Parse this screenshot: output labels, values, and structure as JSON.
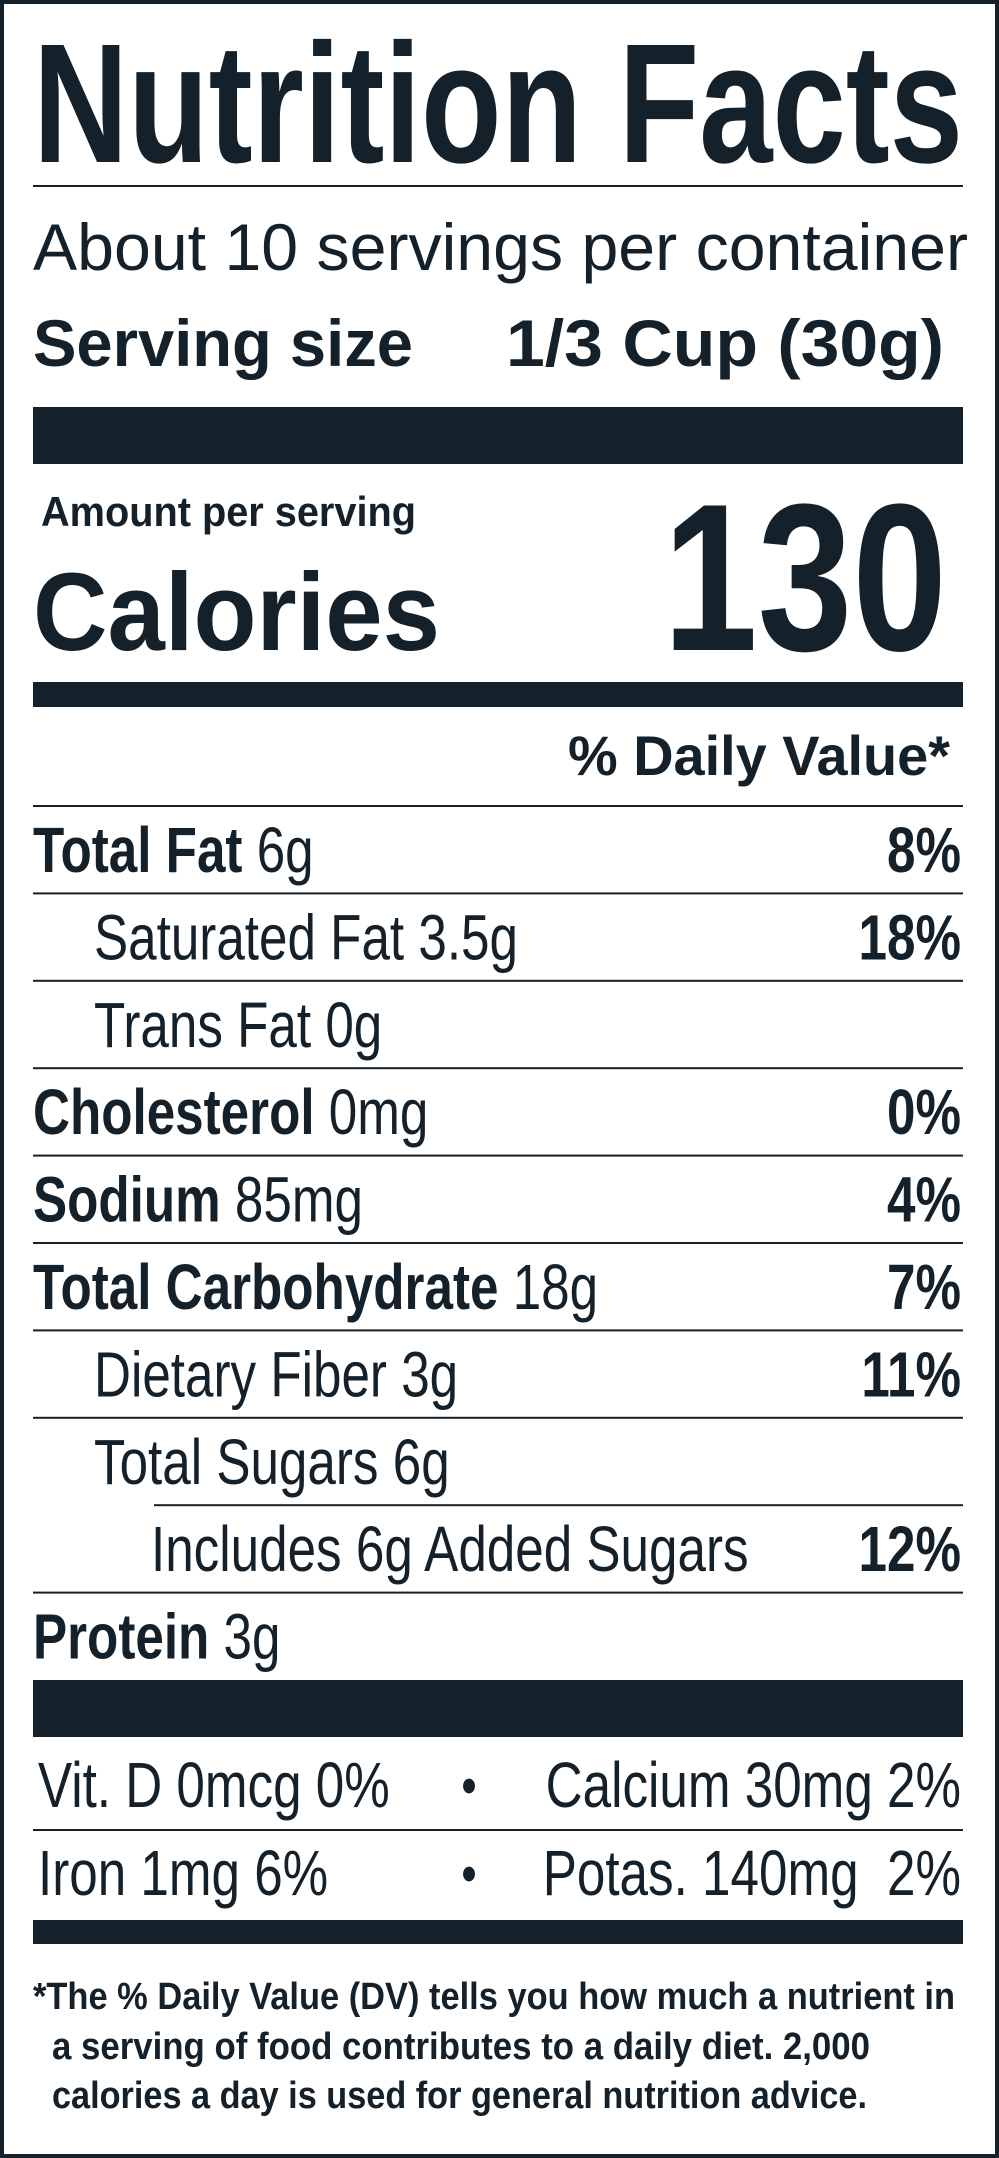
{
  "header": {
    "title": "Nutrition Facts",
    "servings": "About 10 servings per container",
    "serving_size_label": "Serving size",
    "serving_size": "1/3 Cup (30g)"
  },
  "calories": {
    "amount_label": "Amount per serving",
    "label": "Calories",
    "value": 130
  },
  "daily_value_header": "% Daily Value*",
  "nutrients": [
    {
      "name": "Total Fat",
      "amount": "6g",
      "dv": "8%"
    },
    {
      "name": "Saturated Fat",
      "amount": "3.5g",
      "dv": "18%"
    },
    {
      "name": "Trans Fat",
      "amount": "0g"
    },
    {
      "name": "Cholesterol",
      "amount": "0mg",
      "dv": "0%"
    },
    {
      "name": "Sodium",
      "amount": "85mg",
      "dv": "4%"
    },
    {
      "name": "Total Carbohydrate",
      "amount": "18g",
      "dv": "7%"
    },
    {
      "name": "Dietary Fiber",
      "amount": "3g",
      "dv": "11%"
    },
    {
      "name": "Total Sugars",
      "amount": "6g"
    },
    {
      "name": "Includes 6g Added Sugars",
      "dv": "12%"
    },
    {
      "name": "Protein",
      "amount": "3g"
    }
  ],
  "vitamins": [
    {
      "left": "Vit. D 0mcg 0%",
      "separator": "•",
      "right": "Calcium 30mg 2%"
    },
    {
      "left": "Iron 1mg 6%",
      "separator": "•",
      "right": "Potas. 140mg  2%"
    }
  ],
  "footnote": [
    "*The % Daily Value (DV) tells you how much a nutrient in",
    "a serving of food contributes to a daily diet. 2,000",
    "calories a day is used for general nutrition advice."
  ]
}
